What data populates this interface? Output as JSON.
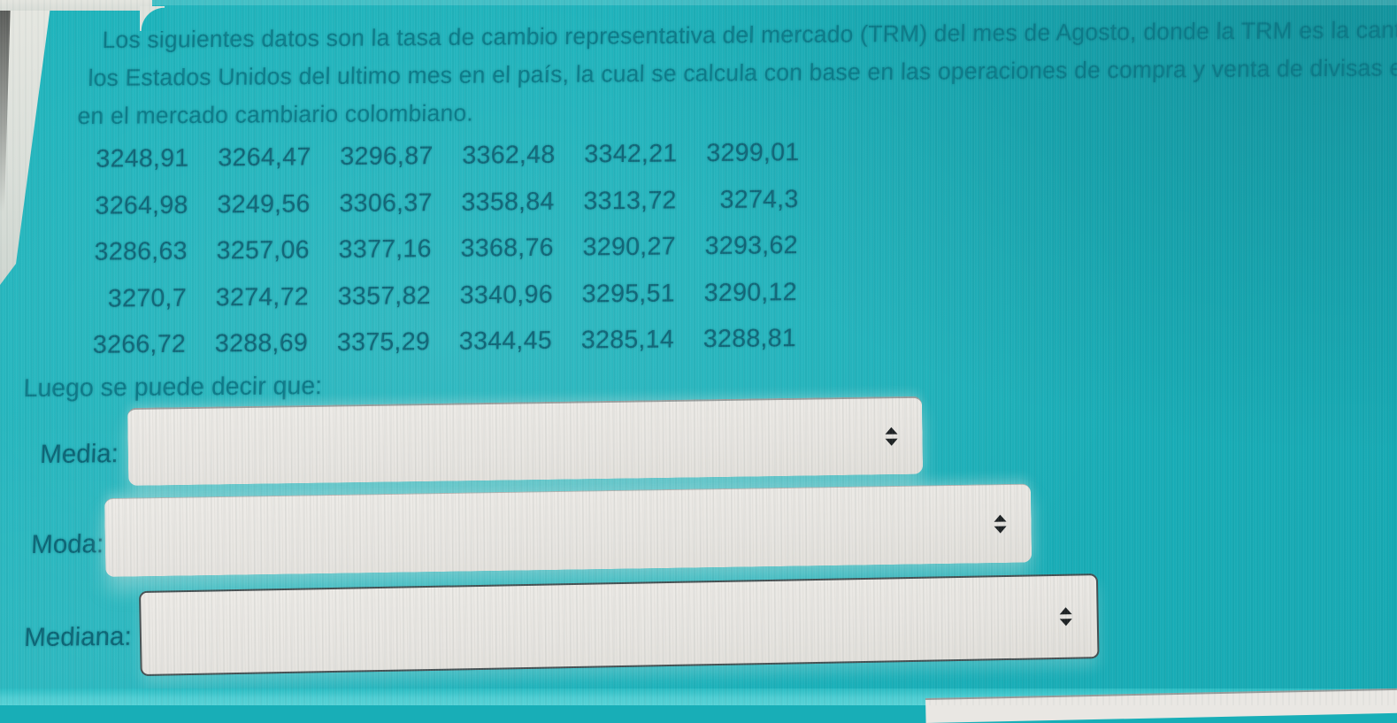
{
  "intro": {
    "line1": "Los siguientes datos  son la tasa de cambio representativa del mercado (TRM) del mes de Agosto, donde la TRM es la canti",
    "line2": "los Estados Unidos del ultimo mes en el país, la cual se calcula con base en las operaciones de compra y venta de divisas e",
    "line3": "en el mercado cambiario colombiano."
  },
  "grid": {
    "rows": [
      [
        "3248,91",
        "3264,47",
        "3296,87",
        "3362,48",
        "3342,21",
        "3299,01"
      ],
      [
        "3264,98",
        "3249,56",
        "3306,37",
        "3358,84",
        "3313,72",
        "3274,3"
      ],
      [
        "3286,63",
        "3257,06",
        "3377,16",
        "3368,76",
        "3290,27",
        "3293,62"
      ],
      [
        "3270,7",
        "3274,72",
        "3357,82",
        "3340,96",
        "3295,51",
        "3290,12"
      ],
      [
        "3266,72",
        "3288,69",
        "3375,29",
        "3344,45",
        "3285,14",
        "3288,81"
      ]
    ]
  },
  "prompt": "Luego se puede decir que:",
  "fields": {
    "media": {
      "label": "Media:",
      "value": ""
    },
    "moda": {
      "label": "Moda:",
      "value": ""
    },
    "mediana": {
      "label": "Mediana:",
      "value": ""
    }
  },
  "icons": {
    "select_spinner": "up-down-triangles"
  },
  "colors": {
    "background_teal": "#1bb2ba",
    "bottom_band_teal": "#4ecdd2",
    "select_background": "#e8e6e2",
    "select_border_dark": "#2a363a",
    "intro_text": "#0b7887",
    "number_text": "#116476",
    "label_text": "#0c6273",
    "spinner_arrows": "#1e2224",
    "page_edge_white": "#e2e4de"
  }
}
